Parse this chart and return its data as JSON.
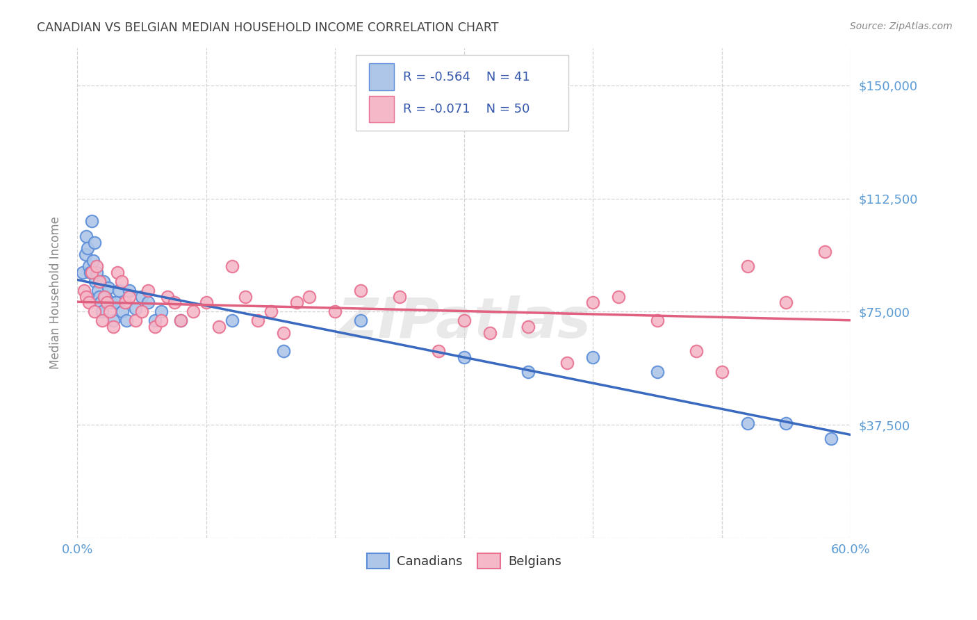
{
  "title": "CANADIAN VS BELGIAN MEDIAN HOUSEHOLD INCOME CORRELATION CHART",
  "source": "Source: ZipAtlas.com",
  "ylabel": "Median Household Income",
  "watermark": "ZIPatlas",
  "xlim": [
    0.0,
    0.6
  ],
  "ylim": [
    0,
    162500
  ],
  "yticks": [
    0,
    37500,
    75000,
    112500,
    150000
  ],
  "ytick_labels": [
    "",
    "$37,500",
    "$75,000",
    "$112,500",
    "$150,000"
  ],
  "xticks": [
    0.0,
    0.1,
    0.2,
    0.3,
    0.4,
    0.5,
    0.6
  ],
  "xtick_labels": [
    "0.0%",
    "",
    "",
    "",
    "",
    "",
    "60.0%"
  ],
  "legend_r_canadian": "-0.564",
  "legend_n_canadian": "41",
  "legend_r_belgian": "-0.071",
  "legend_n_belgian": "50",
  "canadian_fill": "#aec6e8",
  "belgian_fill": "#f4b8c8",
  "canadian_edge": "#5b8dd9",
  "belgian_edge": "#e87090",
  "canadian_line_color": "#3a6abf",
  "belgian_line_color": "#e06080",
  "background_color": "#ffffff",
  "grid_color": "#c8c8c8",
  "title_color": "#404040",
  "axis_tick_color": "#5b9bd5",
  "legend_text_color": "#3355aa",
  "canadians_x": [
    0.004,
    0.006,
    0.007,
    0.008,
    0.009,
    0.01,
    0.011,
    0.012,
    0.013,
    0.014,
    0.015,
    0.016,
    0.017,
    0.018,
    0.019,
    0.02,
    0.022,
    0.024,
    0.026,
    0.028,
    0.03,
    0.032,
    0.035,
    0.038,
    0.04,
    0.045,
    0.05,
    0.055,
    0.06,
    0.065,
    0.08,
    0.12,
    0.16,
    0.22,
    0.3,
    0.35,
    0.4,
    0.45,
    0.52,
    0.55,
    0.585
  ],
  "canadians_y": [
    88000,
    94000,
    100000,
    96000,
    90000,
    88000,
    105000,
    92000,
    98000,
    85000,
    88000,
    82000,
    80000,
    78000,
    75000,
    85000,
    80000,
    83000,
    78000,
    72000,
    78000,
    82000,
    75000,
    72000,
    82000,
    76000,
    80000,
    78000,
    72000,
    75000,
    72000,
    72000,
    62000,
    72000,
    60000,
    55000,
    60000,
    55000,
    38000,
    38000,
    33000
  ],
  "belgians_x": [
    0.005,
    0.007,
    0.009,
    0.011,
    0.013,
    0.015,
    0.017,
    0.019,
    0.021,
    0.023,
    0.025,
    0.028,
    0.031,
    0.034,
    0.037,
    0.04,
    0.045,
    0.05,
    0.055,
    0.06,
    0.065,
    0.07,
    0.075,
    0.08,
    0.09,
    0.1,
    0.11,
    0.12,
    0.13,
    0.14,
    0.15,
    0.16,
    0.17,
    0.18,
    0.2,
    0.22,
    0.25,
    0.28,
    0.3,
    0.32,
    0.35,
    0.38,
    0.4,
    0.42,
    0.45,
    0.48,
    0.5,
    0.52,
    0.55,
    0.58
  ],
  "belgians_y": [
    82000,
    80000,
    78000,
    88000,
    75000,
    90000,
    85000,
    72000,
    80000,
    78000,
    75000,
    70000,
    88000,
    85000,
    78000,
    80000,
    72000,
    75000,
    82000,
    70000,
    72000,
    80000,
    78000,
    72000,
    75000,
    78000,
    70000,
    90000,
    80000,
    72000,
    75000,
    68000,
    78000,
    80000,
    75000,
    82000,
    80000,
    62000,
    72000,
    68000,
    70000,
    58000,
    78000,
    80000,
    72000,
    62000,
    55000,
    90000,
    78000,
    95000
  ]
}
